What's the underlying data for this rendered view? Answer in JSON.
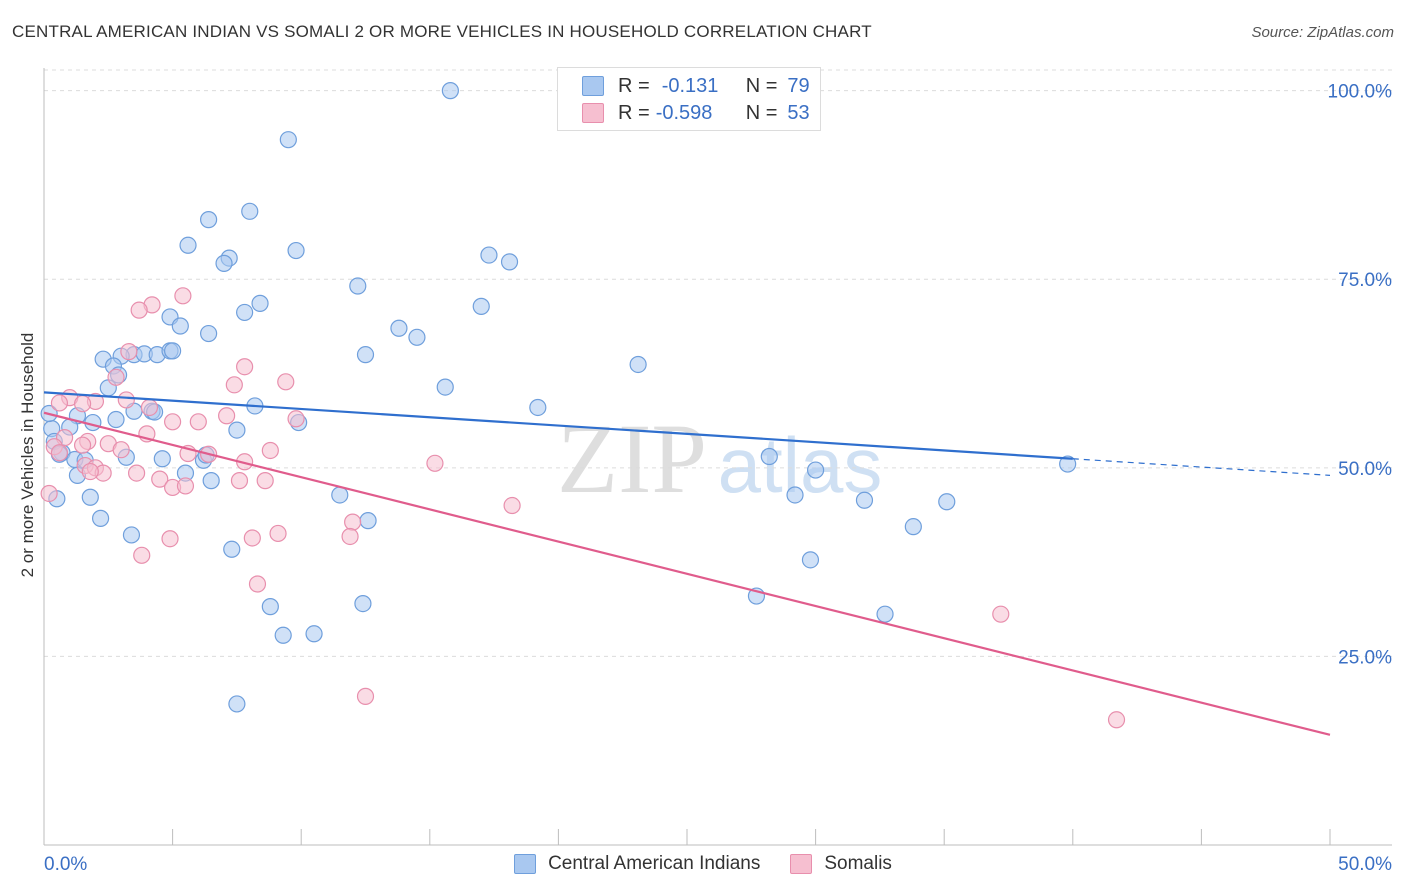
{
  "title": "CENTRAL AMERICAN INDIAN VS SOMALI 2 OR MORE VEHICLES IN HOUSEHOLD CORRELATION CHART",
  "source": "Source: ZipAtlas.com",
  "watermark": {
    "zip": "ZIP",
    "atlas": "atlas"
  },
  "legend": {
    "r_label": "R =",
    "n_label": "N =",
    "items": [
      {
        "r": "-0.131",
        "n": "79",
        "color": "#a9c8f0",
        "stroke": "#6f9fdc"
      },
      {
        "r": "-0.598",
        "n": "53",
        "color": "#f6bfd0",
        "stroke": "#e88fad"
      }
    ]
  },
  "chart_data": {
    "type": "scatter",
    "title": "CENTRAL AMERICAN INDIAN VS SOMALI 2 OR MORE VEHICLES IN HOUSEHOLD CORRELATION CHART",
    "xlabel": "",
    "ylabel": "2 or more Vehicles in Household",
    "xlim": [
      0,
      50
    ],
    "ylim": [
      0,
      103
    ],
    "x_tick_labels": [
      "0.0%",
      "50.0%"
    ],
    "y_ticks": [
      25,
      50,
      75,
      100
    ],
    "y_tick_labels": [
      "25.0%",
      "50.0%",
      "75.0%",
      "100.0%"
    ],
    "grid": true,
    "series": [
      {
        "name": "Central American Indians",
        "color": "#a9c8f0",
        "stroke": "#6f9fdc",
        "line_color": "#2f6fce",
        "trend": {
          "x0": 0,
          "y0": 60.0,
          "x1": 50,
          "y1": 49.0,
          "solid_until": 40
        },
        "points": [
          [
            15.8,
            100.0
          ],
          [
            9.5,
            93.5
          ],
          [
            6.4,
            82.9
          ],
          [
            8.0,
            84.0
          ],
          [
            5.6,
            79.5
          ],
          [
            7.2,
            77.8
          ],
          [
            7.0,
            77.1
          ],
          [
            9.8,
            78.8
          ],
          [
            12.2,
            74.1
          ],
          [
            17.3,
            78.2
          ],
          [
            18.1,
            77.3
          ],
          [
            17.0,
            71.4
          ],
          [
            7.8,
            70.6
          ],
          [
            8.4,
            71.8
          ],
          [
            4.9,
            70.0
          ],
          [
            5.3,
            68.8
          ],
          [
            6.4,
            67.8
          ],
          [
            13.8,
            68.5
          ],
          [
            14.5,
            67.3
          ],
          [
            3.5,
            65.0
          ],
          [
            3.9,
            65.1
          ],
          [
            4.4,
            65.0
          ],
          [
            4.9,
            65.5
          ],
          [
            5.0,
            65.5
          ],
          [
            3.0,
            64.8
          ],
          [
            2.3,
            64.4
          ],
          [
            2.7,
            63.5
          ],
          [
            12.5,
            65.0
          ],
          [
            23.1,
            63.7
          ],
          [
            2.9,
            62.3
          ],
          [
            2.5,
            60.6
          ],
          [
            15.6,
            60.7
          ],
          [
            8.2,
            58.2
          ],
          [
            19.2,
            58.0
          ],
          [
            4.2,
            57.5
          ],
          [
            4.3,
            57.4
          ],
          [
            3.5,
            57.5
          ],
          [
            1.3,
            56.9
          ],
          [
            2.8,
            56.4
          ],
          [
            1.9,
            56.0
          ],
          [
            9.9,
            56.0
          ],
          [
            0.3,
            55.2
          ],
          [
            1.0,
            55.4
          ],
          [
            7.5,
            55.0
          ],
          [
            0.7,
            52.0
          ],
          [
            1.2,
            51.1
          ],
          [
            1.6,
            51.0
          ],
          [
            3.2,
            51.4
          ],
          [
            4.6,
            51.2
          ],
          [
            6.2,
            51.0
          ],
          [
            6.3,
            51.7
          ],
          [
            28.2,
            51.5
          ],
          [
            30.0,
            49.7
          ],
          [
            39.8,
            50.5
          ],
          [
            5.5,
            49.3
          ],
          [
            1.3,
            49.0
          ],
          [
            6.5,
            48.3
          ],
          [
            0.5,
            45.9
          ],
          [
            1.8,
            46.1
          ],
          [
            11.5,
            46.4
          ],
          [
            29.2,
            46.4
          ],
          [
            31.9,
            45.7
          ],
          [
            35.1,
            45.5
          ],
          [
            2.2,
            43.3
          ],
          [
            12.6,
            43.0
          ],
          [
            33.8,
            42.2
          ],
          [
            3.4,
            41.1
          ],
          [
            7.3,
            39.2
          ],
          [
            29.8,
            37.8
          ],
          [
            27.7,
            33.0
          ],
          [
            8.8,
            31.6
          ],
          [
            12.4,
            32.0
          ],
          [
            32.7,
            30.6
          ],
          [
            9.3,
            27.8
          ],
          [
            10.5,
            28.0
          ],
          [
            7.5,
            18.7
          ],
          [
            0.2,
            57.2
          ],
          [
            0.4,
            53.5
          ],
          [
            0.6,
            51.8
          ]
        ]
      },
      {
        "name": "Somalis",
        "color": "#f6bfd0",
        "stroke": "#e88fad",
        "line_color": "#e05c8c",
        "trend": {
          "x0": 0,
          "y0": 57.3,
          "x1": 50,
          "y1": 14.6,
          "solid_until": 50
        },
        "points": [
          [
            5.4,
            72.8
          ],
          [
            4.2,
            71.6
          ],
          [
            3.7,
            70.9
          ],
          [
            3.3,
            65.4
          ],
          [
            7.8,
            63.4
          ],
          [
            2.8,
            62.0
          ],
          [
            9.4,
            61.4
          ],
          [
            7.4,
            61.0
          ],
          [
            1.0,
            59.3
          ],
          [
            2.0,
            58.8
          ],
          [
            0.6,
            58.6
          ],
          [
            1.5,
            58.5
          ],
          [
            3.2,
            59.0
          ],
          [
            4.1,
            58.0
          ],
          [
            7.1,
            56.9
          ],
          [
            5.0,
            56.1
          ],
          [
            6.0,
            56.1
          ],
          [
            9.8,
            56.5
          ],
          [
            4.0,
            54.5
          ],
          [
            0.8,
            54.0
          ],
          [
            1.7,
            53.5
          ],
          [
            2.5,
            53.2
          ],
          [
            1.5,
            53.0
          ],
          [
            0.4,
            52.8
          ],
          [
            3.0,
            52.4
          ],
          [
            0.6,
            52.0
          ],
          [
            8.8,
            52.3
          ],
          [
            5.6,
            51.9
          ],
          [
            6.4,
            51.8
          ],
          [
            1.6,
            50.3
          ],
          [
            2.0,
            50.0
          ],
          [
            7.8,
            50.8
          ],
          [
            15.2,
            50.6
          ],
          [
            2.3,
            49.3
          ],
          [
            3.6,
            49.3
          ],
          [
            1.8,
            49.5
          ],
          [
            4.5,
            48.5
          ],
          [
            7.6,
            48.3
          ],
          [
            8.6,
            48.3
          ],
          [
            5.0,
            47.4
          ],
          [
            5.5,
            47.6
          ],
          [
            0.2,
            46.6
          ],
          [
            18.2,
            45.0
          ],
          [
            12.0,
            42.8
          ],
          [
            9.1,
            41.3
          ],
          [
            8.1,
            40.7
          ],
          [
            11.9,
            40.9
          ],
          [
            4.9,
            40.6
          ],
          [
            3.8,
            38.4
          ],
          [
            8.3,
            34.6
          ],
          [
            37.2,
            30.6
          ],
          [
            12.5,
            19.7
          ],
          [
            41.7,
            16.6
          ]
        ]
      }
    ]
  },
  "bottom_legend": [
    "Central American Indians",
    "Somalis"
  ]
}
